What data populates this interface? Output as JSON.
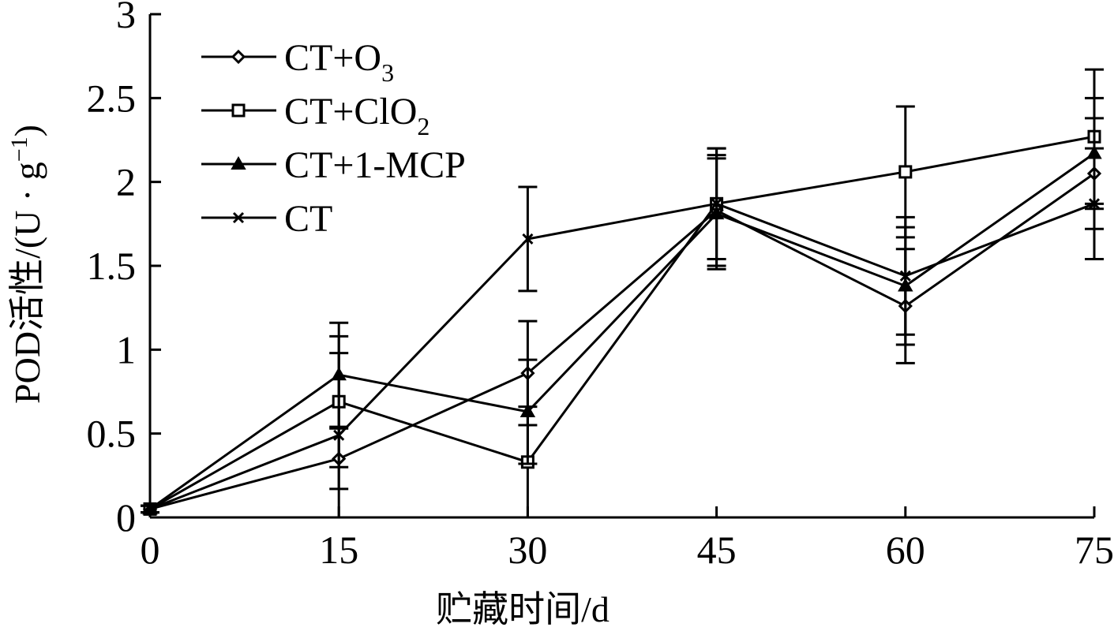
{
  "chart_data": {
    "type": "line",
    "title": "",
    "xlabel": "贮藏时间/d",
    "ylabel": "POD活性/(U · g⁻¹)",
    "ylabel_parts": {
      "main": "POD活性/(U · g",
      "sup": "−1",
      "close": ")"
    },
    "x": [
      0,
      15,
      30,
      45,
      60,
      75
    ],
    "xlim": [
      0,
      75
    ],
    "ylim": [
      0,
      3
    ],
    "x_ticks": [
      "0",
      "15",
      "30",
      "45",
      "60",
      "75"
    ],
    "y_ticks": [
      "0",
      "0.5",
      "1",
      "1.5",
      "2",
      "2.5",
      "3"
    ],
    "grid": false,
    "legend_position": "top-left",
    "series": [
      {
        "name": "CT+O3",
        "label_main": "CT+O",
        "label_sub": "3",
        "marker": "diamond",
        "values": [
          0.05,
          0.35,
          0.86,
          1.83,
          1.26,
          2.05
        ],
        "errors": [
          0.02,
          0.18,
          0.31,
          0.33,
          0.34,
          0.33
        ]
      },
      {
        "name": "CT+ClO2",
        "label_main": "CT+ClO",
        "label_sub": "2",
        "marker": "square",
        "values": [
          0.05,
          0.69,
          0.33,
          1.87,
          2.06,
          2.27
        ],
        "errors": [
          0.02,
          0.39,
          0.33,
          0.33,
          0.39,
          0.4
        ]
      },
      {
        "name": "CT+1-MCP",
        "label_main": "CT+1-MCP",
        "label_sub": "",
        "marker": "triangle",
        "values": [
          0.05,
          0.85,
          0.63,
          1.81,
          1.38,
          2.17
        ],
        "errors": [
          0.02,
          0.31,
          0.31,
          0.33,
          0.35,
          0.33
        ]
      },
      {
        "name": "CT",
        "label_main": "CT",
        "label_sub": "",
        "marker": "x",
        "values": [
          0.05,
          0.49,
          1.66,
          1.87,
          1.44,
          1.87
        ],
        "errors": [
          0.02,
          0.49,
          0.31,
          0.33,
          0.35,
          0.33
        ]
      }
    ]
  }
}
